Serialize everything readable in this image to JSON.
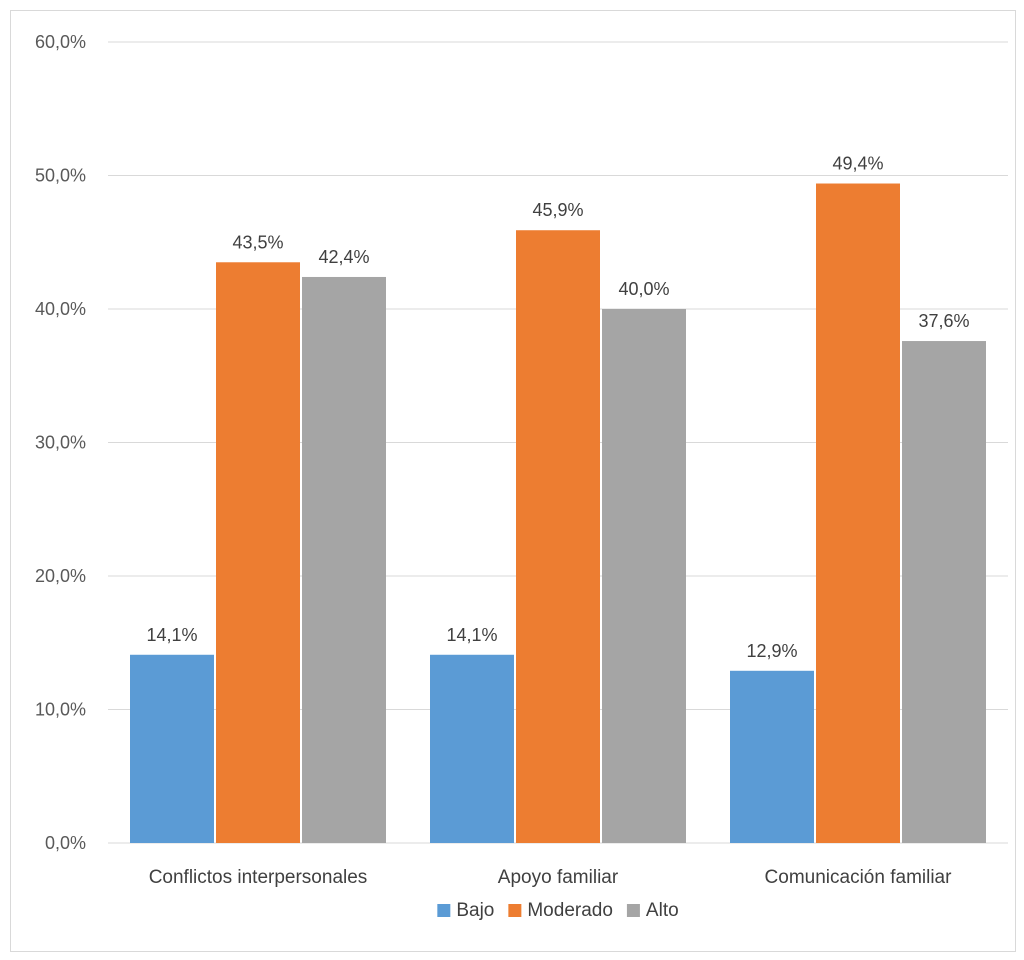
{
  "chart_data": {
    "type": "bar",
    "title": "",
    "xlabel": "",
    "ylabel": "",
    "categories": [
      "Conflictos interpersonales",
      "Apoyo familiar",
      "Comunicación familiar"
    ],
    "series": [
      {
        "name": "Bajo",
        "values": [
          14.1,
          14.1,
          12.9
        ],
        "labels": [
          "14,1%",
          "14,1%",
          "12,9%"
        ],
        "color": "#5b9bd5"
      },
      {
        "name": "Moderado",
        "values": [
          43.5,
          45.9,
          49.4
        ],
        "labels": [
          "43,5%",
          "45,9%",
          "49,4%"
        ],
        "color": "#ed7d31"
      },
      {
        "name": "Alto",
        "values": [
          42.4,
          40.0,
          37.6
        ],
        "labels": [
          "42,4%",
          "40,0%",
          "37,6%"
        ],
        "color": "#a5a5a5"
      }
    ],
    "ylim": [
      0,
      60
    ],
    "yticks": [
      0,
      10,
      20,
      30,
      40,
      50,
      60
    ],
    "ytick_labels": [
      "0,0%",
      "10,0%",
      "20,0%",
      "30,0%",
      "40,0%",
      "50,0%",
      "60,0%"
    ],
    "grid": true,
    "legend_position": "bottom",
    "colors": {
      "gridline": "#d9d9d9",
      "axis_text": "#595959",
      "text": "#404040",
      "border": "#d9d9d9"
    }
  }
}
